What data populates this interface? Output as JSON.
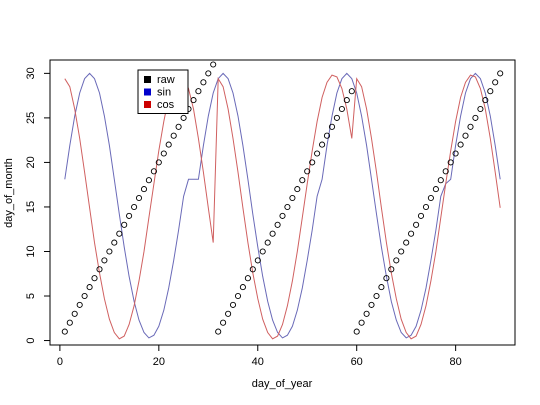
{
  "chart_data": {
    "type": "scatter",
    "title": "",
    "xlabel": "day_of_year",
    "ylabel": "day_of_month",
    "xlim": [
      -2,
      92
    ],
    "ylim": [
      -0.5,
      31.5
    ],
    "xticks": [
      0,
      20,
      40,
      60,
      80
    ],
    "yticks": [
      0,
      5,
      10,
      15,
      20,
      25,
      30
    ],
    "grid": false,
    "legend_position": "top-left",
    "legend": [
      {
        "label": "raw",
        "color": "#000000"
      },
      {
        "label": "sin",
        "color": "#0000cc"
      },
      {
        "label": "cos",
        "color": "#cc0000"
      }
    ],
    "series": [
      {
        "name": "raw",
        "style": "points",
        "color": "#000000",
        "x": [
          1,
          2,
          3,
          4,
          5,
          6,
          7,
          8,
          9,
          10,
          11,
          12,
          13,
          14,
          15,
          16,
          17,
          18,
          19,
          20,
          21,
          22,
          23,
          24,
          25,
          26,
          27,
          28,
          29,
          30,
          31,
          32,
          33,
          34,
          35,
          36,
          37,
          38,
          39,
          40,
          41,
          42,
          43,
          44,
          45,
          46,
          47,
          48,
          49,
          50,
          51,
          52,
          53,
          54,
          55,
          56,
          57,
          58,
          59,
          60,
          61,
          62,
          63,
          64,
          65,
          66,
          67,
          68,
          69,
          70,
          71,
          72,
          73,
          74,
          75,
          76,
          77,
          78,
          79,
          80,
          81,
          82,
          83,
          84,
          85,
          86,
          87,
          88,
          89
        ],
        "y": [
          1,
          2,
          3,
          4,
          5,
          6,
          7,
          8,
          9,
          10,
          11,
          12,
          13,
          14,
          15,
          16,
          17,
          18,
          19,
          20,
          21,
          22,
          23,
          24,
          25,
          26,
          27,
          28,
          29,
          30,
          31,
          1,
          2,
          3,
          4,
          5,
          6,
          7,
          8,
          9,
          10,
          11,
          12,
          13,
          14,
          15,
          16,
          17,
          18,
          19,
          20,
          21,
          22,
          23,
          24,
          25,
          26,
          27,
          28,
          1,
          2,
          3,
          4,
          5,
          6,
          7,
          8,
          9,
          10,
          11,
          12,
          13,
          14,
          15,
          16,
          17,
          18,
          19,
          20,
          21,
          22,
          23,
          24,
          25,
          26,
          27,
          28,
          29,
          30
        ]
      },
      {
        "name": "sin",
        "style": "line",
        "color": "#6a6ab8",
        "x": [
          1,
          2,
          3,
          4,
          5,
          6,
          7,
          8,
          9,
          10,
          11,
          12,
          13,
          14,
          15,
          16,
          17,
          18,
          19,
          20,
          21,
          22,
          23,
          24,
          25,
          26,
          27,
          28,
          29,
          30,
          31,
          32,
          33,
          34,
          35,
          36,
          37,
          38,
          39,
          40,
          41,
          42,
          43,
          44,
          45,
          46,
          47,
          48,
          49,
          50,
          51,
          52,
          53,
          54,
          55,
          56,
          57,
          58,
          59,
          60,
          61,
          62,
          63,
          64,
          65,
          66,
          67,
          68,
          69,
          70,
          71,
          72,
          73,
          74,
          75,
          76,
          77,
          78,
          79,
          80,
          81,
          82,
          83,
          84,
          85,
          86,
          87,
          88,
          89
        ],
        "y": [
          18.1,
          21.9,
          25.2,
          27.8,
          29.4,
          30.0,
          29.4,
          27.8,
          25.2,
          21.9,
          18.1,
          14.2,
          10.5,
          7.2,
          4.4,
          2.3,
          0.9,
          0.3,
          0.6,
          1.6,
          3.4,
          5.9,
          9.0,
          12.4,
          16.2,
          18.1,
          18.1,
          18.1,
          21.9,
          25.2,
          27.8,
          29.4,
          30.0,
          29.4,
          27.8,
          25.2,
          21.9,
          18.1,
          14.2,
          10.5,
          7.2,
          4.4,
          2.3,
          0.9,
          0.3,
          0.6,
          1.6,
          3.4,
          5.9,
          9.0,
          12.4,
          16.2,
          18.1,
          21.9,
          25.2,
          27.8,
          29.4,
          30.0,
          29.4,
          27.8,
          25.2,
          21.9,
          18.1,
          14.2,
          10.5,
          7.2,
          4.4,
          2.3,
          0.9,
          0.3,
          0.6,
          1.6,
          3.4,
          5.9,
          9.0,
          12.4,
          16.2,
          17.6,
          18.1,
          21.9,
          25.2,
          27.8,
          29.4,
          30.0,
          29.4,
          27.8,
          25.2,
          21.9,
          18.1
        ]
      },
      {
        "name": "cos",
        "style": "line",
        "color": "#d06060",
        "x": [
          1,
          2,
          3,
          4,
          5,
          6,
          7,
          8,
          9,
          10,
          11,
          12,
          13,
          14,
          15,
          16,
          17,
          18,
          19,
          20,
          21,
          22,
          23,
          24,
          25,
          26,
          27,
          28,
          29,
          30,
          31,
          32,
          33,
          34,
          35,
          36,
          37,
          38,
          39,
          40,
          41,
          42,
          43,
          44,
          45,
          46,
          47,
          48,
          49,
          50,
          51,
          52,
          53,
          54,
          55,
          56,
          57,
          58,
          59,
          60,
          61,
          62,
          63,
          64,
          65,
          66,
          67,
          68,
          69,
          70,
          71,
          72,
          73,
          74,
          75,
          76,
          77,
          78,
          79,
          80,
          81,
          82,
          83,
          84,
          85,
          86,
          87,
          88,
          89
        ],
        "y": [
          29.4,
          28.5,
          26.0,
          22.7,
          18.9,
          14.9,
          11.0,
          7.6,
          4.7,
          2.4,
          0.9,
          0.2,
          0.5,
          1.8,
          3.9,
          6.7,
          10.0,
          13.8,
          17.6,
          21.3,
          24.6,
          27.3,
          29.0,
          29.8,
          29.6,
          28.3,
          26.0,
          22.7,
          18.9,
          14.9,
          11.0,
          29.4,
          28.5,
          26.0,
          22.7,
          18.9,
          14.9,
          11.0,
          7.6,
          4.7,
          2.4,
          0.9,
          0.2,
          0.5,
          1.8,
          3.9,
          6.7,
          10.0,
          13.8,
          17.6,
          21.3,
          24.6,
          27.3,
          29.0,
          29.8,
          29.6,
          28.3,
          26.0,
          22.7,
          29.4,
          28.5,
          26.0,
          22.7,
          18.9,
          14.9,
          11.0,
          7.6,
          4.7,
          2.4,
          0.9,
          0.2,
          0.5,
          1.8,
          3.9,
          6.7,
          10.0,
          13.8,
          17.6,
          21.3,
          24.6,
          27.3,
          29.0,
          29.8,
          29.6,
          28.3,
          26.0,
          22.7,
          18.9,
          14.9
        ]
      }
    ]
  }
}
